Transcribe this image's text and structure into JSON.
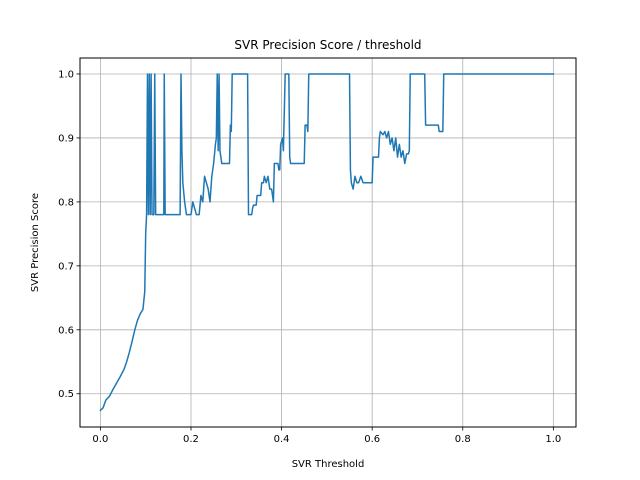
{
  "chart_data": {
    "type": "line",
    "title": "SVR Precision Score / threshold",
    "xlabel": "SVR Threshold",
    "ylabel": "SVR Precision Score",
    "xlim": [
      -0.045,
      1.05
    ],
    "ylim": [
      0.448,
      1.025
    ],
    "xticks": [
      0.0,
      0.2,
      0.4,
      0.6,
      0.8,
      1.0
    ],
    "xtick_labels": [
      "0.0",
      "0.2",
      "0.4",
      "0.6",
      "0.8",
      "1.0"
    ],
    "yticks": [
      0.5,
      0.6,
      0.7,
      0.8,
      0.9,
      1.0
    ],
    "ytick_labels": [
      "0.5",
      "0.6",
      "0.7",
      "0.8",
      "0.9",
      "1.0"
    ],
    "grid": true,
    "colors": {
      "line": "#1f77b4",
      "grid": "#b0b0b0",
      "axes": "#000000"
    },
    "series": [
      {
        "name": "",
        "points": [
          [
            0.0,
            0.474
          ],
          [
            0.006,
            0.478
          ],
          [
            0.012,
            0.49
          ],
          [
            0.02,
            0.496
          ],
          [
            0.028,
            0.507
          ],
          [
            0.036,
            0.517
          ],
          [
            0.044,
            0.527
          ],
          [
            0.052,
            0.538
          ],
          [
            0.058,
            0.55
          ],
          [
            0.064,
            0.565
          ],
          [
            0.07,
            0.582
          ],
          [
            0.076,
            0.6
          ],
          [
            0.082,
            0.615
          ],
          [
            0.088,
            0.625
          ],
          [
            0.094,
            0.632
          ],
          [
            0.098,
            0.66
          ],
          [
            0.1,
            0.75
          ],
          [
            0.102,
            0.78
          ],
          [
            0.104,
            1.0
          ],
          [
            0.106,
            0.78
          ],
          [
            0.108,
            1.0
          ],
          [
            0.11,
            0.78
          ],
          [
            0.112,
            1.0
          ],
          [
            0.114,
            0.78
          ],
          [
            0.118,
            0.78
          ],
          [
            0.12,
            1.0
          ],
          [
            0.122,
            0.78
          ],
          [
            0.14,
            0.78
          ],
          [
            0.141,
            1.0
          ],
          [
            0.143,
            0.78
          ],
          [
            0.176,
            0.78
          ],
          [
            0.178,
            1.0
          ],
          [
            0.18,
            0.88
          ],
          [
            0.182,
            0.83
          ],
          [
            0.186,
            0.8
          ],
          [
            0.19,
            0.78
          ],
          [
            0.2,
            0.78
          ],
          [
            0.204,
            0.8
          ],
          [
            0.208,
            0.79
          ],
          [
            0.212,
            0.78
          ],
          [
            0.218,
            0.78
          ],
          [
            0.222,
            0.81
          ],
          [
            0.226,
            0.8
          ],
          [
            0.23,
            0.84
          ],
          [
            0.234,
            0.83
          ],
          [
            0.238,
            0.82
          ],
          [
            0.242,
            0.8
          ],
          [
            0.246,
            0.84
          ],
          [
            0.25,
            0.86
          ],
          [
            0.254,
            0.89
          ],
          [
            0.256,
            0.9
          ],
          [
            0.258,
            1.0
          ],
          [
            0.26,
            0.88
          ],
          [
            0.262,
            1.0
          ],
          [
            0.264,
            0.88
          ],
          [
            0.268,
            0.86
          ],
          [
            0.285,
            0.86
          ],
          [
            0.287,
            0.92
          ],
          [
            0.289,
            0.91
          ],
          [
            0.291,
            1.0
          ],
          [
            0.325,
            1.0
          ],
          [
            0.327,
            0.78
          ],
          [
            0.334,
            0.78
          ],
          [
            0.336,
            0.79
          ],
          [
            0.338,
            0.795
          ],
          [
            0.344,
            0.795
          ],
          [
            0.346,
            0.81
          ],
          [
            0.354,
            0.81
          ],
          [
            0.356,
            0.83
          ],
          [
            0.36,
            0.83
          ],
          [
            0.362,
            0.84
          ],
          [
            0.366,
            0.83
          ],
          [
            0.37,
            0.84
          ],
          [
            0.374,
            0.82
          ],
          [
            0.378,
            0.82
          ],
          [
            0.382,
            0.8
          ],
          [
            0.384,
            0.86
          ],
          [
            0.392,
            0.86
          ],
          [
            0.394,
            0.85
          ],
          [
            0.396,
            0.85
          ],
          [
            0.398,
            0.89
          ],
          [
            0.402,
            0.9
          ],
          [
            0.404,
            0.88
          ],
          [
            0.408,
            1.0
          ],
          [
            0.416,
            1.0
          ],
          [
            0.418,
            0.87
          ],
          [
            0.42,
            0.86
          ],
          [
            0.45,
            0.86
          ],
          [
            0.452,
            0.92
          ],
          [
            0.456,
            0.92
          ],
          [
            0.458,
            0.91
          ],
          [
            0.46,
            1.0
          ],
          [
            0.55,
            1.0
          ],
          [
            0.552,
            0.85
          ],
          [
            0.554,
            0.83
          ],
          [
            0.558,
            0.82
          ],
          [
            0.562,
            0.84
          ],
          [
            0.566,
            0.83
          ],
          [
            0.57,
            0.83
          ],
          [
            0.575,
            0.84
          ],
          [
            0.58,
            0.83
          ],
          [
            0.6,
            0.83
          ],
          [
            0.602,
            0.87
          ],
          [
            0.614,
            0.87
          ],
          [
            0.616,
            0.9
          ],
          [
            0.618,
            0.91
          ],
          [
            0.624,
            0.905
          ],
          [
            0.628,
            0.91
          ],
          [
            0.632,
            0.9
          ],
          [
            0.636,
            0.91
          ],
          [
            0.64,
            0.89
          ],
          [
            0.644,
            0.9
          ],
          [
            0.648,
            0.88
          ],
          [
            0.652,
            0.9
          ],
          [
            0.656,
            0.87
          ],
          [
            0.66,
            0.89
          ],
          [
            0.664,
            0.87
          ],
          [
            0.668,
            0.88
          ],
          [
            0.672,
            0.86
          ],
          [
            0.676,
            0.875
          ],
          [
            0.68,
            0.875
          ],
          [
            0.682,
            0.88
          ],
          [
            0.684,
            1.0
          ],
          [
            0.716,
            1.0
          ],
          [
            0.718,
            0.92
          ],
          [
            0.746,
            0.92
          ],
          [
            0.748,
            0.91
          ],
          [
            0.756,
            0.91
          ],
          [
            0.758,
            1.0
          ],
          [
            1.0,
            1.0
          ]
        ]
      }
    ]
  }
}
